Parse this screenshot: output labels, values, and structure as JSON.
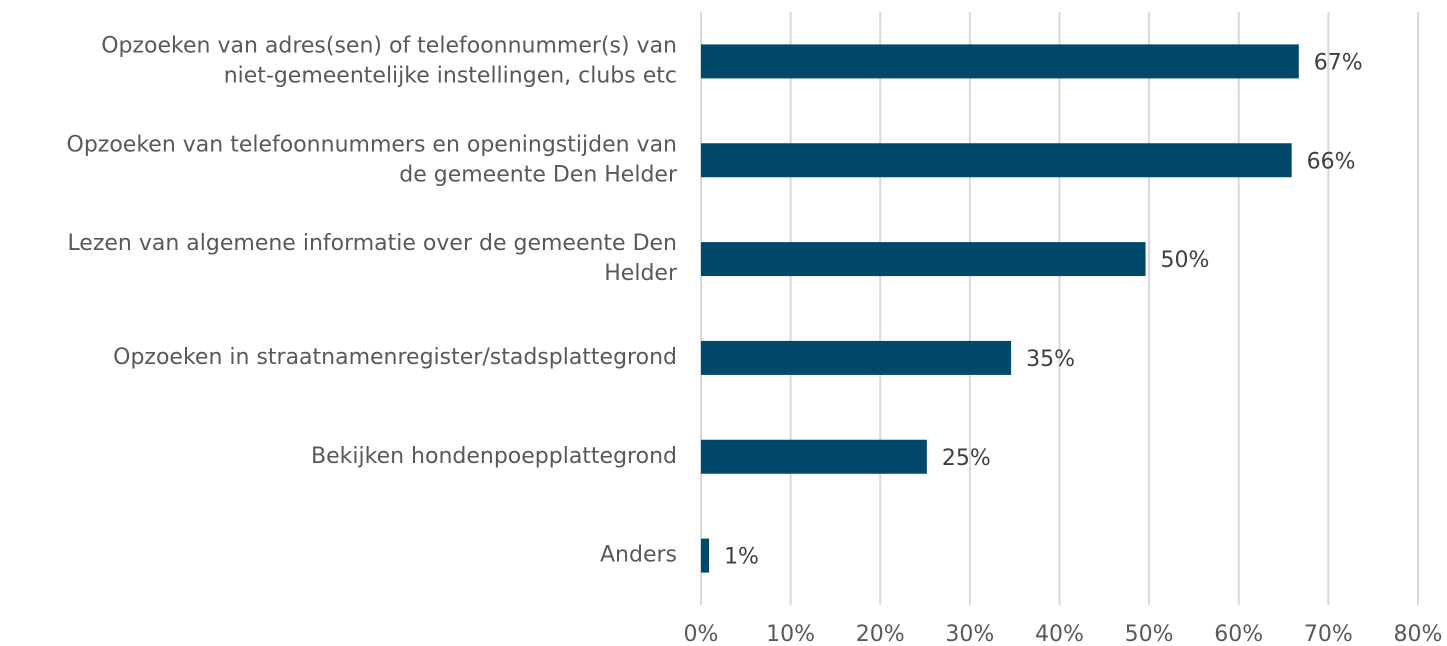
{
  "chart_data": {
    "type": "barh",
    "categories": [
      "Opzoeken van adres(sen) of telefoonnummer(s) van\nniet-gemeentelijke instellingen, clubs etc",
      "Opzoeken van telefoonnummers en openingstijden van\nde gemeente Den Helder",
      "Lezen van algemene informatie over de gemeente Den\nHelder",
      "Opzoeken in straatnamenregister/stadsplattegrond",
      "Bekijken hondenpoepplattegrond",
      "Anders"
    ],
    "values": [
      66.7,
      65.9,
      49.6,
      34.6,
      25.2,
      0.9
    ],
    "value_labels": [
      "67%",
      "66%",
      "50%",
      "35%",
      "25%",
      "1%"
    ],
    "color": "#00496b",
    "xlim": [
      0,
      80
    ],
    "xticks": [
      {
        "value": 0,
        "label": "0%"
      },
      {
        "value": 10,
        "label": "10%"
      },
      {
        "value": 20,
        "label": "20%"
      },
      {
        "value": 30,
        "label": "30%"
      },
      {
        "value": 40,
        "label": "40%"
      },
      {
        "value": 50,
        "label": "50%"
      },
      {
        "value": 60,
        "label": "60%"
      },
      {
        "value": 70,
        "label": "70%"
      },
      {
        "value": 80,
        "label": "80%"
      }
    ],
    "grid": true
  }
}
